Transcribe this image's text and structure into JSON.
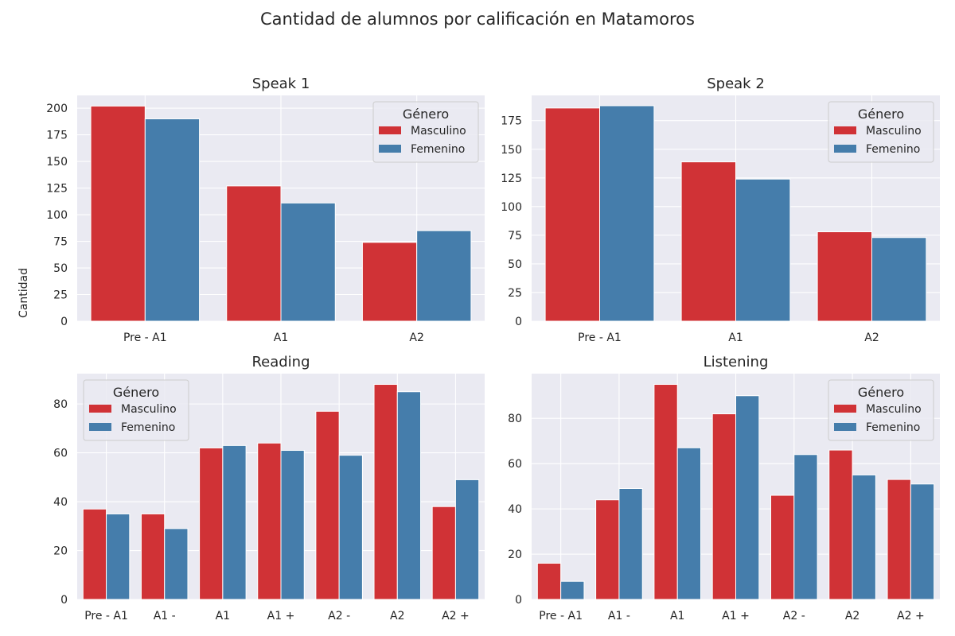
{
  "figure": {
    "title": "Cantidad de alumnos por calificación en Matamoros",
    "ylabel": "Cantidad"
  },
  "colors": {
    "Masculino": "#d03236",
    "Femenino": "#457dab",
    "panel_bg": "#eaeaf2",
    "grid": "#ffffff"
  },
  "chart_data": [
    {
      "type": "bar",
      "title": "Speak 1",
      "categories": [
        "Pre - A1",
        "A1",
        "A2"
      ],
      "series": [
        {
          "name": "Masculino",
          "values": [
            202,
            127,
            74
          ]
        },
        {
          "name": "Femenino",
          "values": [
            190,
            111,
            85
          ]
        }
      ],
      "ylim": [
        0,
        212
      ],
      "yticks": [
        0,
        25,
        50,
        75,
        100,
        125,
        150,
        175,
        200
      ],
      "legend": {
        "title": "Género",
        "position": "upper right"
      }
    },
    {
      "type": "bar",
      "title": "Speak 2",
      "categories": [
        "Pre - A1",
        "A1",
        "A2"
      ],
      "series": [
        {
          "name": "Masculino",
          "values": [
            186,
            139,
            78
          ]
        },
        {
          "name": "Femenino",
          "values": [
            188,
            124,
            73
          ]
        }
      ],
      "ylim": [
        0,
        197
      ],
      "yticks": [
        0,
        25,
        50,
        75,
        100,
        125,
        150,
        175
      ],
      "legend": {
        "title": "Género",
        "position": "upper right"
      }
    },
    {
      "type": "bar",
      "title": "Reading",
      "categories": [
        "Pre - A1",
        "A1 -",
        "A1",
        "A1 +",
        "A2 -",
        "A2",
        "A2 +"
      ],
      "series": [
        {
          "name": "Masculino",
          "values": [
            37,
            35,
            62,
            64,
            77,
            88,
            38
          ]
        },
        {
          "name": "Femenino",
          "values": [
            35,
            29,
            63,
            61,
            59,
            85,
            49
          ]
        }
      ],
      "ylim": [
        0,
        92.4
      ],
      "yticks": [
        0,
        20,
        40,
        60,
        80
      ],
      "legend": {
        "title": "Género",
        "position": "upper left"
      }
    },
    {
      "type": "bar",
      "title": "Listening",
      "categories": [
        "Pre - A1",
        "A1 -",
        "A1",
        "A1 +",
        "A2 -",
        "A2",
        "A2 +"
      ],
      "series": [
        {
          "name": "Masculino",
          "values": [
            16,
            44,
            95,
            82,
            46,
            66,
            53
          ]
        },
        {
          "name": "Femenino",
          "values": [
            8,
            49,
            67,
            90,
            64,
            55,
            51
          ]
        }
      ],
      "ylim": [
        0,
        99.75
      ],
      "yticks": [
        0,
        20,
        40,
        60,
        80
      ],
      "legend": {
        "title": "Género",
        "position": "upper right"
      }
    }
  ]
}
